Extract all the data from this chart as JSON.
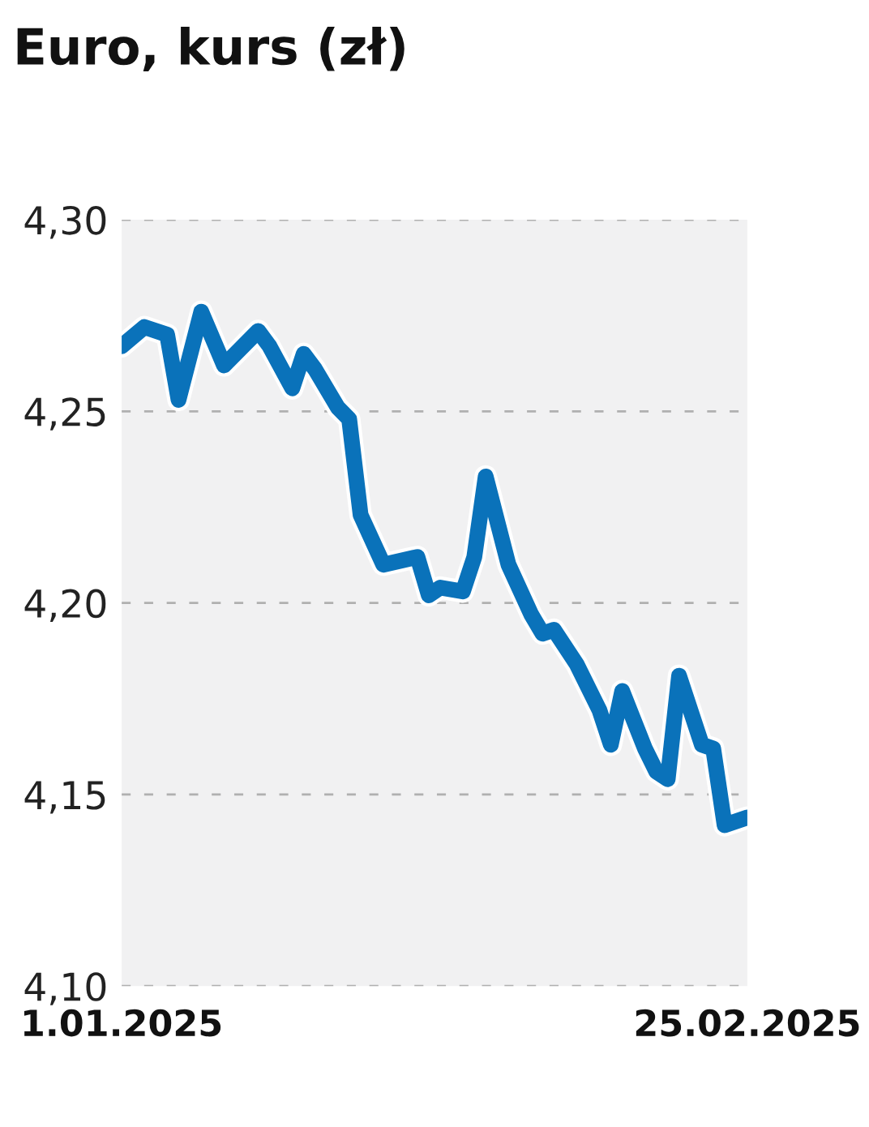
{
  "chart_data": {
    "type": "line",
    "title": "Euro, kurs (zł)",
    "series": [
      {
        "color": "#0a72ba",
        "x": [
          "2025-01-01",
          "2025-01-03",
          "2025-01-05",
          "2025-01-06",
          "2025-01-08",
          "2025-01-10",
          "2025-01-13",
          "2025-01-14",
          "2025-01-16",
          "2025-01-17",
          "2025-01-18",
          "2025-01-20",
          "2025-01-21",
          "2025-01-22",
          "2025-01-24",
          "2025-01-27",
          "2025-01-28",
          "2025-01-29",
          "2025-01-31",
          "2025-02-01",
          "2025-02-02",
          "2025-02-04",
          "2025-02-06",
          "2025-02-07",
          "2025-02-08",
          "2025-02-10",
          "2025-02-12",
          "2025-02-13",
          "2025-02-14",
          "2025-02-16",
          "2025-02-17",
          "2025-02-18",
          "2025-02-19",
          "2025-02-21",
          "2025-02-22",
          "2025-02-23",
          "2025-02-25"
        ],
        "values": [
          4.267,
          4.272,
          4.27,
          4.253,
          4.276,
          4.262,
          4.271,
          4.267,
          4.256,
          4.265,
          4.261,
          4.251,
          4.248,
          4.223,
          4.21,
          4.212,
          4.202,
          4.204,
          4.203,
          4.212,
          4.233,
          4.21,
          4.197,
          4.192,
          4.193,
          4.184,
          4.172,
          4.163,
          4.177,
          4.162,
          4.156,
          4.154,
          4.181,
          4.163,
          4.162,
          4.142,
          4.144
        ]
      }
    ],
    "xlim": [
      "2025-01-01",
      "2025-02-25"
    ],
    "xticks": [
      {
        "value": "2025-01-01",
        "label": "1.01.2025"
      },
      {
        "value": "2025-02-25",
        "label": "25.02.2025"
      }
    ],
    "ylim": [
      4.1,
      4.3
    ],
    "yticks": [
      {
        "value": 4.1,
        "label": "4,10"
      },
      {
        "value": 4.15,
        "label": "4,15"
      },
      {
        "value": 4.2,
        "label": "4,20"
      },
      {
        "value": 4.25,
        "label": "4,25"
      },
      {
        "value": 4.3,
        "label": "4,30"
      }
    ],
    "grid": "y",
    "marker": "none",
    "line_style": "solid"
  }
}
